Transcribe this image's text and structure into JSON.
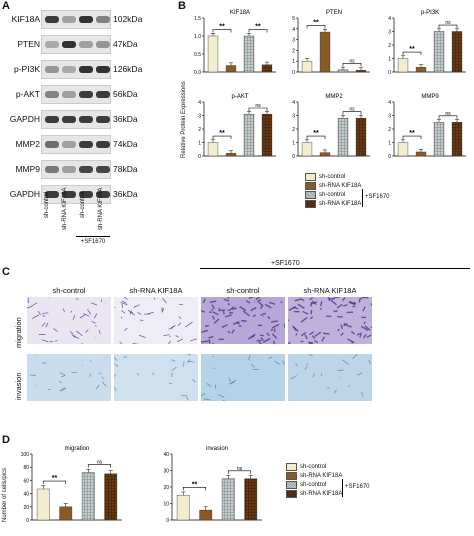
{
  "panels": {
    "A": "A",
    "B": "B",
    "C": "C",
    "D": "D"
  },
  "blots": [
    {
      "label": "KIF18A",
      "kda": "102kDa"
    },
    {
      "label": "PTEN",
      "kda": "47kDa"
    },
    {
      "label": "p-PI3K",
      "kda": "126kDa"
    },
    {
      "label": "p-AKT",
      "kda": "56kDa"
    },
    {
      "label": "GAPDH",
      "kda": "36kDa"
    },
    {
      "label": "MMP2",
      "kda": "74kDa"
    },
    {
      "label": "MMP9",
      "kda": "78kDa"
    },
    {
      "label": "GAPDH",
      "kda": "36kDa"
    }
  ],
  "lanes": [
    "sh-control",
    "sh-RNA KIF18A",
    "sh-control",
    "sh-RNA KIF18A"
  ],
  "sf_label": "+SF1670",
  "ylabel_b": "Relative Protein Expressions",
  "legend": [
    "sh-control",
    "sh-RNA KIF18A",
    "sh-control",
    "sh-RNA KIF18A"
  ],
  "legend_sf": "+SF1670",
  "colors": {
    "c1": "#f2edcf",
    "c2": "#8a5a24",
    "c3": "#c8cccc",
    "c4": "#6a3a14"
  },
  "section_c": {
    "sf_label": "+SF1670",
    "cols": [
      "sh-control",
      "sh-RNA KIF18A",
      "sh-control",
      "sh-RNA KIF18A"
    ],
    "rows": [
      "migration",
      "invasion"
    ]
  },
  "section_d": {
    "ylabel": "Number of cells/pics",
    "legend": [
      "sh-control",
      "sh-RNA KIF18A",
      "sh-control",
      "sh-RNA KIF18A"
    ],
    "legend_sf": "+SF1670"
  },
  "chart_data": [
    {
      "type": "bar",
      "title": "KIF18A",
      "categories": [
        "sh-control",
        "sh-RNA KIF18A",
        "sh-control +SF1670",
        "sh-RNA KIF18A +SF1670"
      ],
      "values": [
        1.0,
        0.18,
        1.0,
        0.2
      ],
      "ylim": [
        0,
        1.5
      ],
      "yticks": [
        "0.0",
        "0.5",
        "1.0",
        "1.5"
      ],
      "sig": [
        {
          "from": 0,
          "to": 1,
          "label": "**"
        },
        {
          "from": 2,
          "to": 3,
          "label": "**"
        }
      ]
    },
    {
      "type": "bar",
      "title": "PTEN",
      "categories": [
        "sh-control",
        "sh-RNA KIF18A",
        "sh-control +SF1670",
        "sh-RNA KIF18A +SF1670"
      ],
      "values": [
        1.0,
        3.7,
        0.2,
        0.15
      ],
      "ylim": [
        0,
        5
      ],
      "yticks": [
        "0",
        "1",
        "2",
        "3",
        "4",
        "5"
      ],
      "sig": [
        {
          "from": 0,
          "to": 1,
          "label": "**"
        },
        {
          "from": 2,
          "to": 3,
          "label": "ns"
        }
      ]
    },
    {
      "type": "bar",
      "title": "p-PI3K",
      "categories": [
        "sh-control",
        "sh-RNA KIF18A",
        "sh-control +SF1670",
        "sh-RNA KIF18A +SF1670"
      ],
      "values": [
        1.0,
        0.35,
        3.0,
        3.0
      ],
      "ylim": [
        0,
        4
      ],
      "yticks": [
        "0",
        "1",
        "2",
        "3",
        "4"
      ],
      "sig": [
        {
          "from": 0,
          "to": 1,
          "label": "**"
        },
        {
          "from": 2,
          "to": 3,
          "label": "ns"
        }
      ]
    },
    {
      "type": "bar",
      "title": "p-AKT",
      "categories": [
        "sh-control",
        "sh-RNA KIF18A",
        "sh-control +SF1670",
        "sh-RNA KIF18A +SF1670"
      ],
      "values": [
        1.0,
        0.2,
        3.1,
        3.1
      ],
      "ylim": [
        0,
        4
      ],
      "yticks": [
        "0",
        "1",
        "2",
        "3",
        "4"
      ],
      "sig": [
        {
          "from": 0,
          "to": 1,
          "label": "**"
        },
        {
          "from": 2,
          "to": 3,
          "label": "ns"
        }
      ]
    },
    {
      "type": "bar",
      "title": "MMP2",
      "categories": [
        "sh-control",
        "sh-RNA KIF18A",
        "sh-control +SF1670",
        "sh-RNA KIF18A +SF1670"
      ],
      "values": [
        1.0,
        0.25,
        2.8,
        2.8
      ],
      "ylim": [
        0,
        4
      ],
      "yticks": [
        "0",
        "1",
        "2",
        "3",
        "4"
      ],
      "sig": [
        {
          "from": 0,
          "to": 1,
          "label": "**"
        },
        {
          "from": 2,
          "to": 3,
          "label": "ns"
        }
      ]
    },
    {
      "type": "bar",
      "title": "MMP9",
      "categories": [
        "sh-control",
        "sh-RNA KIF18A",
        "sh-control +SF1670",
        "sh-RNA KIF18A +SF1670"
      ],
      "values": [
        1.0,
        0.3,
        2.5,
        2.5
      ],
      "ylim": [
        0,
        4
      ],
      "yticks": [
        "0",
        "1",
        "2",
        "3",
        "4"
      ],
      "sig": [
        {
          "from": 0,
          "to": 1,
          "label": "**"
        },
        {
          "from": 2,
          "to": 3,
          "label": "ns"
        }
      ]
    },
    {
      "type": "bar",
      "title": "migration",
      "categories": [
        "sh-control",
        "sh-RNA KIF18A",
        "sh-control +SF1670",
        "sh-RNA KIF18A +SF1670"
      ],
      "values": [
        47,
        20,
        72,
        70
      ],
      "ylim": [
        0,
        100
      ],
      "yticks": [
        "0",
        "20",
        "40",
        "60",
        "80",
        "100"
      ],
      "sig": [
        {
          "from": 0,
          "to": 1,
          "label": "**"
        },
        {
          "from": 2,
          "to": 3,
          "label": "ns"
        }
      ]
    },
    {
      "type": "bar",
      "title": "invasion",
      "categories": [
        "sh-control",
        "sh-RNA KIF18A",
        "sh-control +SF1670",
        "sh-RNA KIF18A +SF1670"
      ],
      "values": [
        15,
        6,
        25,
        25
      ],
      "ylim": [
        0,
        40
      ],
      "yticks": [
        "0",
        "10",
        "20",
        "30",
        "40"
      ],
      "sig": [
        {
          "from": 0,
          "to": 1,
          "label": "**"
        },
        {
          "from": 2,
          "to": 3,
          "label": "ns"
        }
      ]
    }
  ]
}
